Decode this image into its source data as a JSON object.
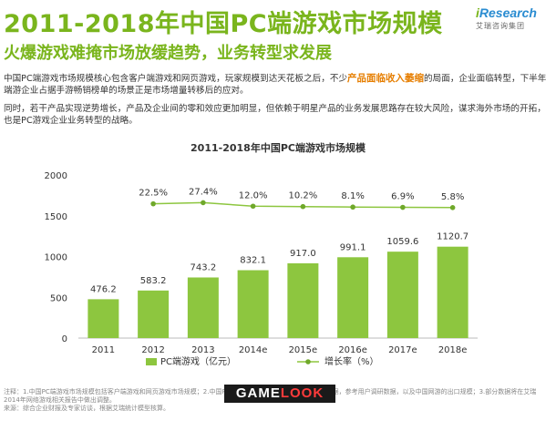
{
  "header": {
    "title": "2011-2018年中国PC端游戏市场规模",
    "subtitle": "火爆游戏难掩市场放缓趋势，业务转型求发展"
  },
  "logo": {
    "word_prefix": "i",
    "word_rest": "Research",
    "sub": "艾瑞咨询集团"
  },
  "body_text": {
    "p1_before": "中国PC端游戏市场规模核心包含客户端游戏和网页游戏，玩家规模到达天花板之后，不少",
    "p1_highlight": "产品面临收入萎缩",
    "p1_after": "的局面，企业面临转型，下半年端游企业占据手游畅销榜单的场景正是市场增量转移后的应对。",
    "p2": "同时，若干产品实现逆势增长，产品及企业间的零和效应更加明显，但依赖于明星产品的业务发展思路存在较大风险，谋求海外市场的开拓，也是PC游戏企业业务转型的战略。"
  },
  "chart_data": {
    "type": "bar",
    "title": "2011-2018年中国PC端游戏市场规模",
    "categories": [
      "2011",
      "2012",
      "2013",
      "2014e",
      "2015e",
      "2016e",
      "2017e",
      "2018e"
    ],
    "series": [
      {
        "name": "PC端游戏（亿元）",
        "type": "bar",
        "values": [
          476.2,
          583.2,
          743.2,
          832.1,
          917.0,
          991.1,
          1059.6,
          1120.7
        ],
        "labels": [
          "476.2",
          "583.2",
          "743.2",
          "832.1",
          "917.0",
          "991.1",
          "1059.6",
          "1120.7"
        ]
      },
      {
        "name": "增长率（%）",
        "type": "line",
        "values": [
          null,
          22.5,
          27.4,
          12.0,
          10.2,
          8.1,
          6.9,
          5.8
        ],
        "labels": [
          "",
          "22.5%",
          "27.4%",
          "12.0%",
          "10.2%",
          "8.1%",
          "6.9%",
          "5.8%"
        ]
      }
    ],
    "ylim": [
      0,
      2000
    ],
    "yticks": [
      "0",
      "500",
      "1000",
      "1500",
      "2000"
    ],
    "grid": false,
    "legend_position": "bottom",
    "colors": {
      "bar": "#8dc63f",
      "line": "#8dc63f",
      "marker": "#6fa82a"
    }
  },
  "footer": {
    "note": "注释：1.中国PC端游戏市场规模包括客户端游戏和网页游戏市场规模；2.中国PC端游戏市场规模统计核心企业营收数据，参考用户调研数据，以及中国网游的出口规模；3.部分数据将在艾瑞2014年网络游戏相关报告中做出调整。",
    "source": "来源：综合企业财报及专家访谈，根据艾瑞统计模型核算。",
    "watermark_a": "GAME",
    "watermark_b": "LOOK"
  }
}
